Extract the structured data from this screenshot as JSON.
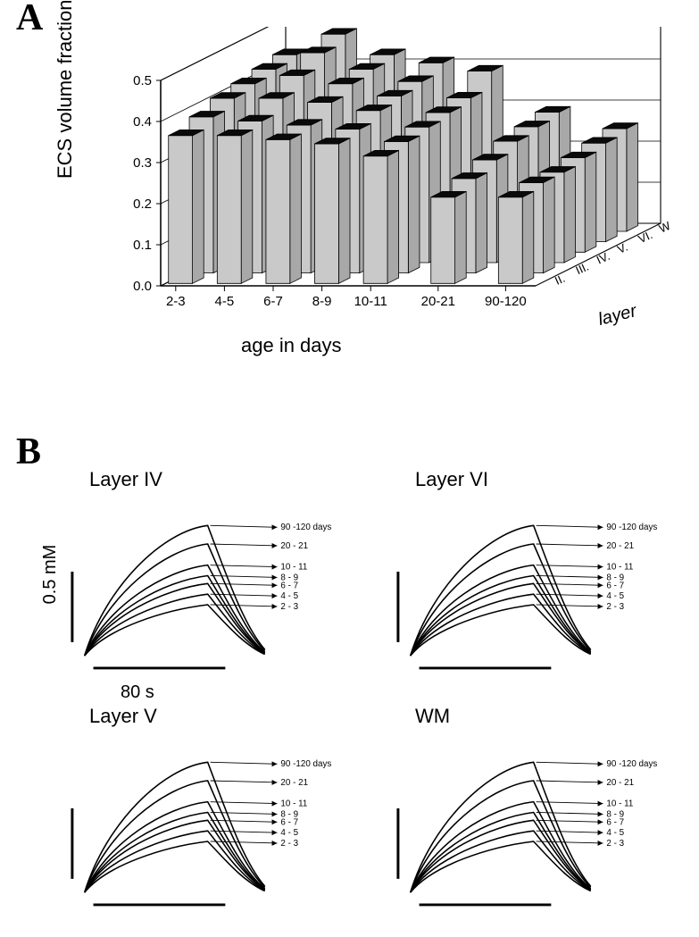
{
  "panelA": {
    "label": "A",
    "y_axis_label": "ECS volume fraction",
    "x_axis_label": "age in days",
    "depth_axis_label": "layer",
    "y_ticks": [
      "0.0",
      "0.1",
      "0.2",
      "0.3",
      "0.4",
      "0.5"
    ],
    "ylim": [
      0,
      0.5
    ],
    "age_groups": [
      "2-3",
      "4-5",
      "6-7",
      "8-9",
      "10-11",
      "20-21",
      "90-120"
    ],
    "layers": [
      "II.",
      "III.",
      "IV.",
      "V.",
      "VI.",
      "W.M."
    ],
    "bars": {
      "II.": [
        0.36,
        0.36,
        0.35,
        0.34,
        0.31,
        0.21,
        0.21
      ],
      "III.": [
        0.38,
        0.37,
        0.36,
        0.35,
        0.32,
        0.23,
        0.22
      ],
      "IV.": [
        0.4,
        0.4,
        0.39,
        0.37,
        0.33,
        0.25,
        0.22
      ],
      "V.": [
        0.41,
        0.43,
        0.41,
        0.38,
        0.34,
        0.27,
        0.23
      ],
      "VI.": [
        0.42,
        0.46,
        0.42,
        0.39,
        0.35,
        0.28,
        0.24
      ],
      "W.M.": [
        0.43,
        0.48,
        0.43,
        0.41,
        0.39,
        0.29,
        0.25
      ]
    },
    "style": {
      "bar_face": "#c9c9c9",
      "bar_top": "#0a0a0a",
      "bar_side": "#a8a8a8",
      "stroke": "#000000",
      "floor": "#ffffff",
      "axis_font_size": 15,
      "label_font_size": 22
    }
  },
  "panelB": {
    "label": "B",
    "y_scale_label": "0.5 mM",
    "x_scale_label": "80 s",
    "ages": [
      "2 - 3",
      "4 - 5",
      "6 - 7",
      "8 - 9",
      "10 - 11",
      "20 - 21",
      "90 -120 days"
    ],
    "peaks": [
      0.4,
      0.48,
      0.56,
      0.62,
      0.7,
      0.86,
      1.0
    ],
    "panels": [
      {
        "title": "Layer IV",
        "key": "IV",
        "show_y_scale_label": true,
        "show_x_scale_label": true
      },
      {
        "title": "Layer VI",
        "key": "VI",
        "show_y_scale_label": false,
        "show_x_scale_label": false
      },
      {
        "title": "Layer V",
        "key": "V",
        "show_y_scale_label": false,
        "show_x_scale_label": false
      },
      {
        "title": "WM",
        "key": "WM",
        "show_y_scale_label": false,
        "show_x_scale_label": false
      }
    ],
    "style": {
      "stroke": "#000000",
      "stroke_width": 1.6,
      "arrow_font_size": 10,
      "title_font_size": 22
    }
  }
}
